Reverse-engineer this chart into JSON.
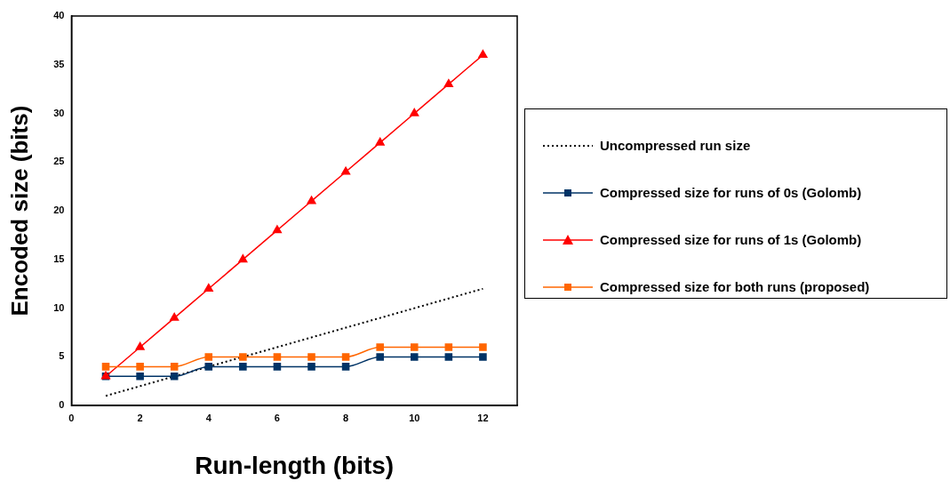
{
  "chart_data": {
    "type": "line",
    "xlabel": "Run-length (bits)",
    "ylabel": "Encoded size (bits)",
    "x": [
      1,
      2,
      3,
      4,
      5,
      6,
      7,
      8,
      9,
      10,
      11,
      12
    ],
    "xlim": [
      0,
      13
    ],
    "xticks": [
      0,
      2,
      4,
      6,
      8,
      10,
      12
    ],
    "ylim": [
      0,
      40
    ],
    "yticks": [
      0,
      5,
      10,
      15,
      20,
      25,
      30,
      35,
      40
    ],
    "grid": false,
    "legend": "right",
    "series": [
      {
        "name": "Uncompressed run size",
        "color": "#000000",
        "marker": "none",
        "line_style": "dotted",
        "values": [
          1,
          2,
          3,
          4,
          5,
          6,
          7,
          8,
          9,
          10,
          11,
          12
        ]
      },
      {
        "name": "Compressed size for runs of 0s (Golomb)",
        "color": "#003366",
        "marker": "square",
        "line_style": "solid",
        "values": [
          3,
          3,
          3,
          4,
          4,
          4,
          4,
          4,
          5,
          5,
          5,
          5
        ]
      },
      {
        "name": "Compressed size for runs of 1s (Golomb)",
        "color": "#ff0000",
        "marker": "triangle",
        "line_style": "solid",
        "values": [
          3,
          6,
          9,
          12,
          15,
          18,
          21,
          24,
          27,
          30,
          33,
          36
        ]
      },
      {
        "name": "Compressed size for both runs (proposed)",
        "color": "#ff6600",
        "marker": "square",
        "line_style": "solid",
        "values": [
          4,
          4,
          4,
          5,
          5,
          5,
          5,
          5,
          6,
          6,
          6,
          6
        ]
      }
    ]
  }
}
